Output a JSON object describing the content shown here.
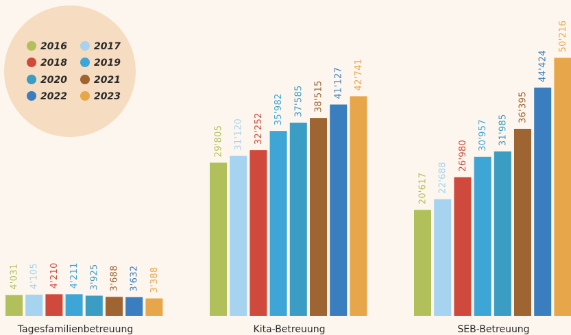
{
  "chart_data": {
    "type": "bar",
    "title": "",
    "xlabel": "",
    "ylabel": "",
    "legend_placement": "top-left",
    "grid": false,
    "categories": [
      "Tagesfamilienbetreuung",
      "Kita-Betreuung",
      "SEB-Betreuung"
    ],
    "series": [
      {
        "name": "2016",
        "color": "#b1c05a",
        "values": [
          4031,
          29805,
          20617
        ],
        "labels": [
          "4'031",
          "29'805",
          "20'617"
        ]
      },
      {
        "name": "2017",
        "color": "#a6d3ef",
        "values": [
          4105,
          31120,
          22688
        ],
        "labels": [
          "4'105",
          "31'120",
          "22'688"
        ]
      },
      {
        "name": "2018",
        "color": "#cf4a3c",
        "values": [
          4210,
          32252,
          26980
        ],
        "labels": [
          "4'210",
          "32'252",
          "26'980"
        ]
      },
      {
        "name": "2019",
        "color": "#3ea6d6",
        "values": [
          4211,
          35982,
          30957
        ],
        "labels": [
          "4'211",
          "35'982",
          "30'957"
        ]
      },
      {
        "name": "2020",
        "color": "#3b9cc4",
        "values": [
          3925,
          37585,
          31985
        ],
        "labels": [
          "3'925",
          "37'585",
          "31'985"
        ]
      },
      {
        "name": "2021",
        "color": "#9e6431",
        "values": [
          3688,
          38515,
          36395
        ],
        "labels": [
          "3'688",
          "38'515",
          "36'395"
        ]
      },
      {
        "name": "2022",
        "color": "#3a7ec0",
        "values": [
          3632,
          41127,
          44424
        ],
        "labels": [
          "3'632",
          "41'127",
          "44'424"
        ]
      },
      {
        "name": "2023",
        "color": "#e8a64a",
        "values": [
          3388,
          42741,
          50216
        ],
        "labels": [
          "3'388",
          "42'741",
          "50'216"
        ]
      }
    ]
  },
  "colors": {
    "background": "#fdf6ee",
    "legend_circle": "#f6dcc0"
  }
}
